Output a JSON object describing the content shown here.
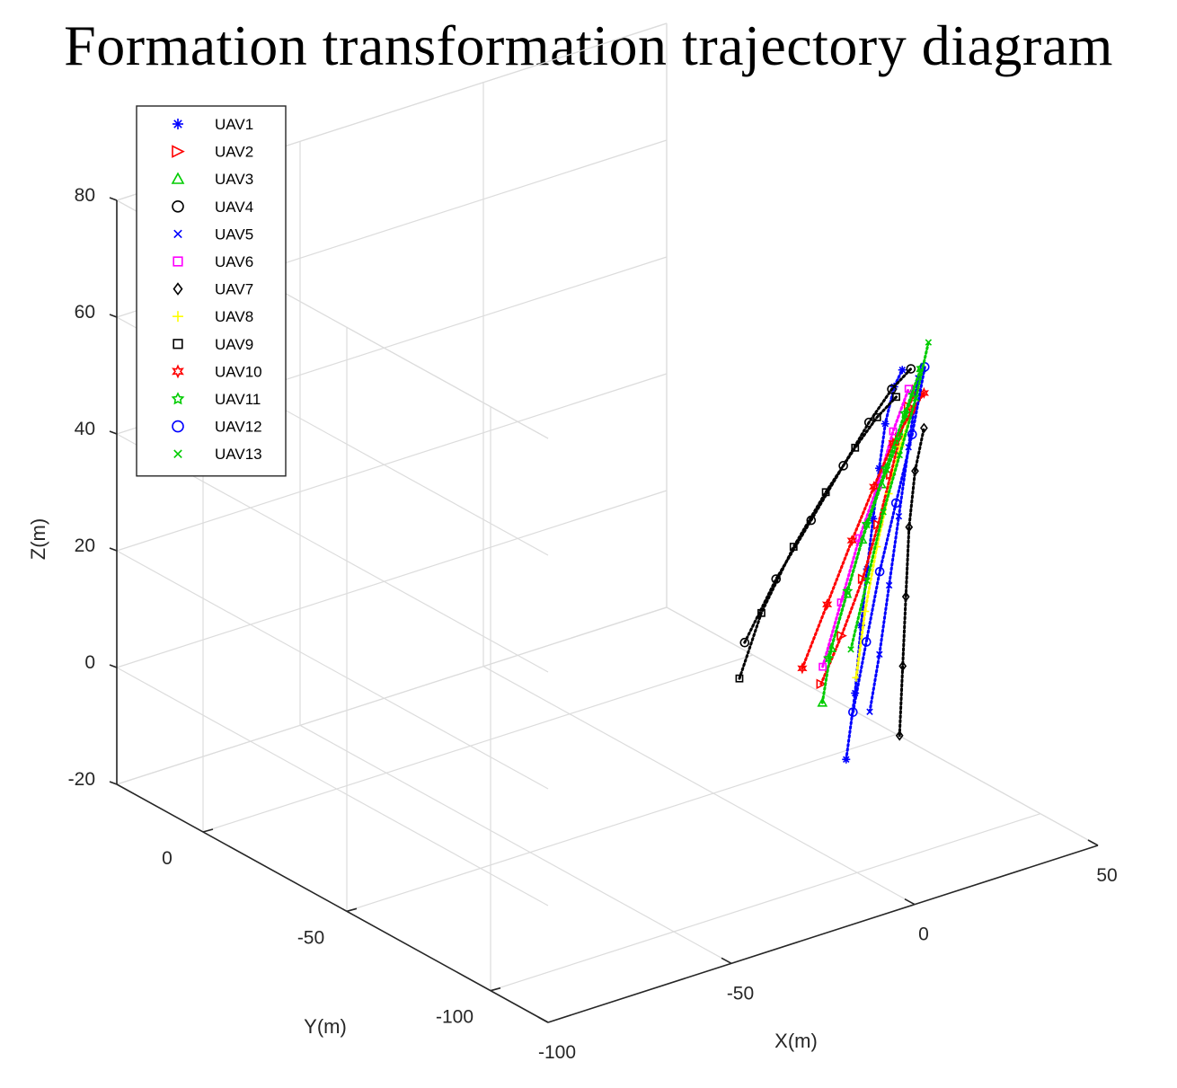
{
  "chart_data": {
    "type": "scatter",
    "title": "Formation transformation trajectory diagram",
    "xlabel": "X(m)",
    "ylabel": "Y(m)",
    "zlabel": "Z(m)",
    "xlim": [
      -100,
      50
    ],
    "ylim": [
      -120,
      30
    ],
    "zlim": [
      -20,
      80
    ],
    "xticks": [
      "-100",
      "-50",
      "0",
      "50"
    ],
    "yticks": [
      "0",
      "-50",
      "-100"
    ],
    "zticks": [
      "-20",
      "0",
      "20",
      "40",
      "60",
      "80"
    ],
    "grid": true,
    "legend_position": "top-left",
    "series": [
      {
        "name": "UAV1",
        "color": "#0000ff",
        "marker": "asterisk",
        "x": [
          -3,
          1,
          5,
          9,
          13,
          17,
          21,
          25,
          28
        ],
        "y": [
          -100,
          -98,
          -95,
          -92,
          -89,
          -86,
          -83,
          -81,
          -80
        ],
        "z": [
          0,
          10,
          20,
          28,
          35,
          42,
          48,
          53,
          55
        ]
      },
      {
        "name": "UAV2",
        "color": "#ff0000",
        "marker": "triangle-right",
        "x": [
          -2,
          2,
          7,
          12,
          17,
          21,
          25,
          28
        ],
        "y": [
          -90,
          -92,
          -93,
          -92,
          -90,
          -88,
          -86,
          -85
        ],
        "z": [
          10,
          18,
          27,
          35,
          42,
          47,
          51,
          53
        ]
      },
      {
        "name": "UAV3",
        "color": "#00cc00",
        "marker": "triangle-up",
        "x": [
          -4,
          0,
          5,
          10,
          16,
          22,
          27,
          30
        ],
        "y": [
          -93,
          -91,
          -90,
          -89,
          -88,
          -87,
          -85,
          -84
        ],
        "z": [
          8,
          16,
          24,
          32,
          40,
          47,
          53,
          56
        ]
      },
      {
        "name": "UAV4",
        "color": "#000000",
        "marker": "circle",
        "x": [
          -15,
          -8,
          0,
          8,
          15,
          22,
          28
        ],
        "y": [
          -80,
          -82,
          -84,
          -85,
          -85,
          -84,
          -83
        ],
        "z": [
          17,
          27,
          36,
          44,
          50,
          54,
          56
        ]
      },
      {
        "name": "UAV5",
        "color": "#0000ff",
        "marker": "x",
        "x": [
          5,
          10,
          15,
          20,
          25,
          30
        ],
        "y": [
          -98,
          -95,
          -92,
          -89,
          -86,
          -83
        ],
        "z": [
          6,
          14,
          24,
          34,
          44,
          54
        ]
      },
      {
        "name": "UAV6",
        "color": "#ff00ff",
        "marker": "square",
        "x": [
          0,
          5,
          10,
          15,
          20,
          25
        ],
        "y": [
          -88,
          -88,
          -88,
          -88,
          -87,
          -86
        ],
        "z": [
          12,
          22,
          32,
          40,
          48,
          54
        ]
      },
      {
        "name": "UAV7",
        "color": "#000000",
        "marker": "diamond",
        "x": [
          10,
          14,
          18,
          22,
          26,
          30
        ],
        "y": [
          -102,
          -98,
          -94,
          -90,
          -87,
          -85
        ],
        "z": [
          2,
          12,
          22,
          32,
          40,
          46
        ]
      },
      {
        "name": "UAV8",
        "color": "#ffff00",
        "marker": "plus",
        "x": [
          6,
          10,
          14,
          18,
          22,
          27
        ],
        "y": [
          -92,
          -90,
          -89,
          -88,
          -87,
          -85
        ],
        "z": [
          10,
          20,
          30,
          38,
          45,
          50
        ]
      },
      {
        "name": "UAV9",
        "color": "#000000",
        "marker": "square",
        "x": [
          -18,
          -12,
          -4,
          4,
          12,
          18,
          24
        ],
        "y": [
          -82,
          -82,
          -83,
          -84,
          -84,
          -84,
          -83
        ],
        "z": [
          12,
          22,
          32,
          40,
          46,
          50,
          52
        ]
      },
      {
        "name": "UAV10",
        "color": "#ff0000",
        "marker": "hexagram",
        "x": [
          -4,
          2,
          8,
          14,
          20,
          26,
          30
        ],
        "y": [
          -86,
          -87,
          -88,
          -88,
          -87,
          -86,
          -85
        ],
        "z": [
          12,
          22,
          32,
          40,
          46,
          50,
          52
        ]
      },
      {
        "name": "UAV11",
        "color": "#00cc00",
        "marker": "pentagram",
        "x": [
          0,
          6,
          12,
          18,
          24,
          30
        ],
        "y": [
          -90,
          -89,
          -88,
          -87,
          -86,
          -84
        ],
        "z": [
          14,
          24,
          34,
          42,
          50,
          56
        ]
      },
      {
        "name": "UAV12",
        "color": "#0000ff",
        "marker": "circle",
        "x": [
          2,
          8,
          14,
          20,
          26,
          31
        ],
        "y": [
          -96,
          -93,
          -90,
          -88,
          -86,
          -84
        ],
        "z": [
          6,
          16,
          26,
          36,
          46,
          56
        ]
      },
      {
        "name": "UAV13",
        "color": "#00cc00",
        "marker": "x",
        "x": [
          3,
          9,
          15,
          21,
          27,
          32
        ],
        "y": [
          -94,
          -92,
          -90,
          -88,
          -86,
          -84
        ],
        "z": [
          16,
          26,
          36,
          44,
          52,
          60
        ]
      }
    ]
  }
}
